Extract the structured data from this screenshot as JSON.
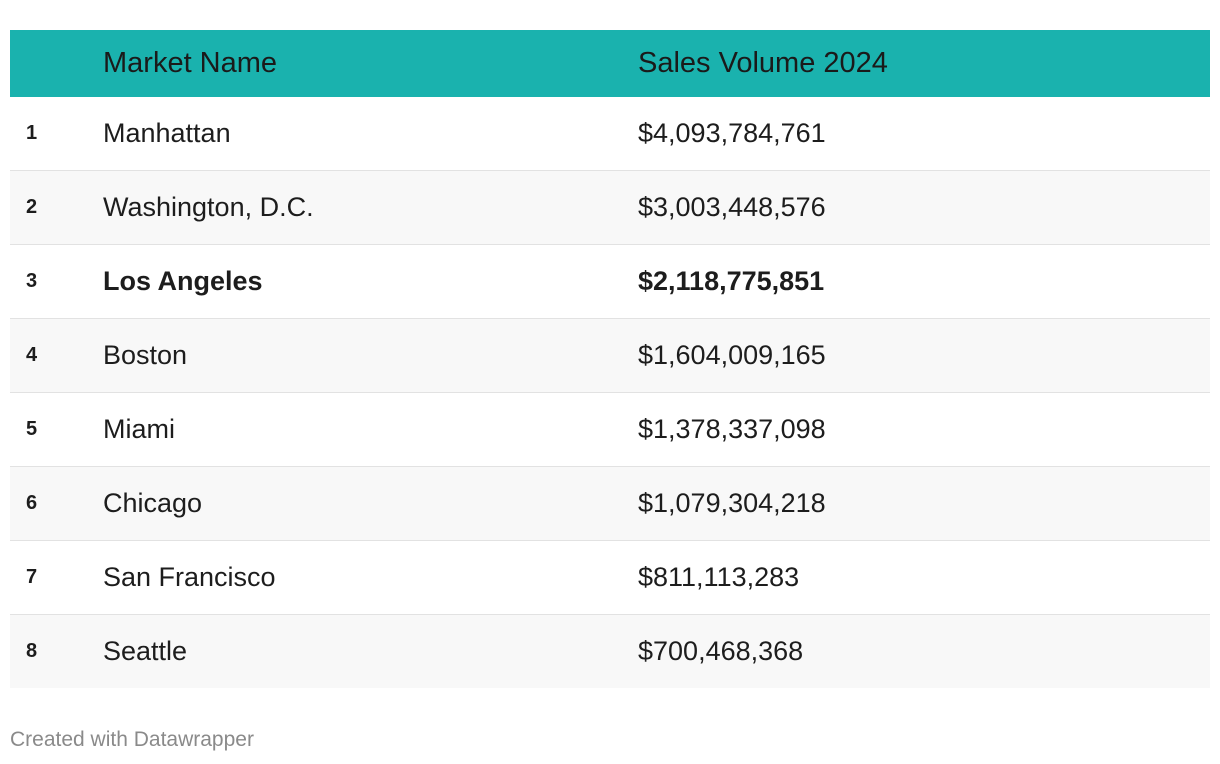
{
  "chart_data": {
    "type": "table",
    "columns": [
      "",
      "Market Name",
      "Sales Volume 2024"
    ],
    "rows": [
      {
        "rank": "1",
        "market": "Manhattan",
        "volume": "$4,093,784,761",
        "value": 4093784761,
        "highlight": false
      },
      {
        "rank": "2",
        "market": "Washington, D.C.",
        "volume": "$3,003,448,576",
        "value": 3003448576,
        "highlight": false
      },
      {
        "rank": "3",
        "market": "Los Angeles",
        "volume": "$2,118,775,851",
        "value": 2118775851,
        "highlight": true
      },
      {
        "rank": "4",
        "market": "Boston",
        "volume": "$1,604,009,165",
        "value": 1604009165,
        "highlight": false
      },
      {
        "rank": "5",
        "market": "Miami",
        "volume": "$1,378,337,098",
        "value": 1378337098,
        "highlight": false
      },
      {
        "rank": "6",
        "market": "Chicago",
        "volume": "$1,079,304,218",
        "value": 1079304218,
        "highlight": false
      },
      {
        "rank": "7",
        "market": "San Francisco",
        "volume": "$811,113,283",
        "value": 811113283,
        "highlight": false
      },
      {
        "rank": "8",
        "market": "Seattle",
        "volume": "$700,468,368",
        "value": 700468368,
        "highlight": false
      }
    ]
  },
  "colors": {
    "header_bg": "#1ab2ae",
    "alt_row_bg": "#f8f8f8",
    "row_divider": "#e2e2e2",
    "footer_text": "#8a8a8a"
  },
  "footer": {
    "credit": "Created with Datawrapper"
  }
}
